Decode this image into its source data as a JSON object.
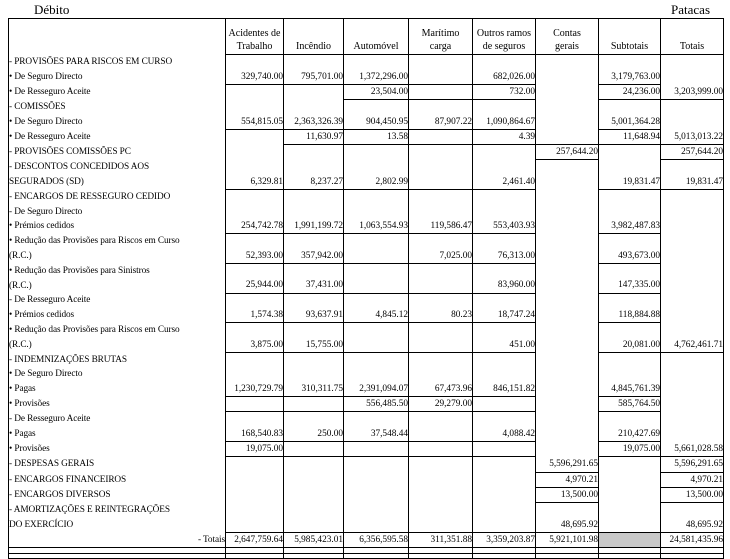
{
  "page": {
    "top_left_label": "Débito",
    "top_right_label": "Patacas"
  },
  "colors": {
    "background": "#ffffff",
    "grid": "#000000",
    "text": "#000000",
    "shaded_cell": "#c9c9c9"
  },
  "table": {
    "columns": [
      {
        "key": "label",
        "header": ""
      },
      {
        "key": "c1",
        "header": "Acidentes de\nTrabalho"
      },
      {
        "key": "c2",
        "header": "Incêndio"
      },
      {
        "key": "c3",
        "header": "Automóvel"
      },
      {
        "key": "c4",
        "header": "Marítimo\ncarga"
      },
      {
        "key": "c5",
        "header": "Outros ramos\nde seguros"
      },
      {
        "key": "c6",
        "header": "Contas\ngerais"
      },
      {
        "key": "c7",
        "header": "Subtotais"
      },
      {
        "key": "c8",
        "header": "Totais"
      }
    ],
    "rows": [
      {
        "label": "- PROVISÕES PARA RISCOS EM CURSO",
        "ind": 0
      },
      {
        "label": "• De Seguro Directo",
        "ind": 1,
        "values": {
          "c1": "329,740.00",
          "c2": "795,701.00",
          "c3": "1,372,296.00",
          "c5": "682,026.00",
          "c7": "3,179,763.00"
        },
        "rules": [
          "c1",
          "c2",
          "c3",
          "c4",
          "c5",
          "c7"
        ]
      },
      {
        "label": "• De Resseguro Aceite",
        "ind": 1,
        "values": {
          "c3": "23,504.00",
          "c5": "732.00",
          "c7": "24,236.00",
          "c8": "3,203,999.00"
        },
        "rules": [
          "c3",
          "c4",
          "c5",
          "c7",
          "c8"
        ]
      },
      {
        "label": "- COMISSÕES",
        "ind": 0
      },
      {
        "label": "• De Seguro Directo",
        "ind": 1,
        "values": {
          "c1": "554,815.05",
          "c2": "2,363,326.39",
          "c3": "904,450.95",
          "c4": "87,907.22",
          "c5": "1,090,864.67",
          "c7": "5,001,364.28"
        },
        "rules": [
          "c1",
          "c2",
          "c3",
          "c4",
          "c5",
          "c7"
        ]
      },
      {
        "label": "• De Resseguro Aceite",
        "ind": 1,
        "values": {
          "c2": "11,630.97",
          "c3": "13.58",
          "c5": "4.39",
          "c7": "11,648.94",
          "c8": "5,013,013.22"
        },
        "rules": [
          "c2",
          "c3",
          "c4",
          "c5",
          "c6",
          "c7",
          "c8"
        ]
      },
      {
        "label": "- PROVISÕES COMISSÕES PC",
        "ind": 2,
        "values": {
          "c6": "257,644.20",
          "c8": "257,644.20"
        },
        "rules": [
          "c6",
          "c8"
        ]
      },
      {
        "label": "- DESCONTOS CONCEDIDOS AOS",
        "ind": 0
      },
      {
        "label": "SEGURADOS (SD)",
        "ind": 3,
        "values": {
          "c1": "6,329.81",
          "c2": "8,237.27",
          "c3": "2,802.99",
          "c5": "2,461.40",
          "c7": "19,831.47",
          "c8": "19,831.47"
        },
        "rules": [
          "c1",
          "c2",
          "c3",
          "c4",
          "c5",
          "c7",
          "c8"
        ]
      },
      {
        "label": "- ENCARGOS DE RESSEGURO CEDIDO",
        "ind": 0
      },
      {
        "label": "- De Seguro Directo",
        "ind": 2
      },
      {
        "label": "• Prémios cedidos",
        "ind": 1,
        "values": {
          "c1": "254,742.78",
          "c2": "1,991,199.72",
          "c3": "1,063,554.93",
          "c4": "119,586.47",
          "c5": "553,403.93",
          "c7": "3,982,487.83"
        },
        "rules": [
          "c1",
          "c2",
          "c3",
          "c4",
          "c5",
          "c7"
        ]
      },
      {
        "label": "• Redução das Provisões para Riscos em Curso",
        "ind": 1
      },
      {
        "label": "(R.C.)",
        "ind": 4,
        "values": {
          "c1": "52,393.00",
          "c2": "357,942.00",
          "c4": "7,025.00",
          "c5": "76,313.00",
          "c7": "493,673.00"
        },
        "rules": [
          "c1",
          "c2",
          "c3",
          "c4",
          "c5",
          "c7"
        ]
      },
      {
        "label": "• Redução das Provisões para Sinistros",
        "ind": 1
      },
      {
        "label": "(R.C.)",
        "ind": 4,
        "values": {
          "c1": "25,944.00",
          "c2": "37,431.00",
          "c5": "83,960.00",
          "c7": "147,335.00"
        },
        "rules": [
          "c1",
          "c2",
          "c3",
          "c4",
          "c5",
          "c7"
        ]
      },
      {
        "label": "- De Resseguro Aceite",
        "ind": 2
      },
      {
        "label": "• Prémios cedidos",
        "ind": 1,
        "values": {
          "c1": "1,574.38",
          "c2": "93,637.91",
          "c3": "4,845.12",
          "c4": "80.23",
          "c5": "18,747.24",
          "c7": "118,884.88"
        },
        "rules": [
          "c1",
          "c2",
          "c3",
          "c4",
          "c5",
          "c7"
        ]
      },
      {
        "label": "• Redução das Provisões para Riscos em Curso",
        "ind": 1
      },
      {
        "label": "(R.C.)",
        "ind": 4,
        "values": {
          "c1": "3,875.00",
          "c2": "15,755.00",
          "c5": "451.00",
          "c7": "20,081.00",
          "c8": "4,762,461.71"
        },
        "rules": [
          "c1",
          "c2",
          "c3",
          "c4",
          "c5",
          "c7",
          "c8"
        ]
      },
      {
        "label": "- INDEMNIZAÇÕES BRUTAS",
        "ind": 0
      },
      {
        "label": "• De Seguro Directo",
        "ind": 1
      },
      {
        "label": "• Pagas",
        "ind": 1,
        "values": {
          "c1": "1,230,729.79",
          "c2": "310,311.75",
          "c3": "2,391,094.07",
          "c4": "67,473.96",
          "c5": "846,151.82",
          "c7": "4,845,761.39"
        },
        "rules": [
          "c1",
          "c2",
          "c3",
          "c4",
          "c5",
          "c7"
        ]
      },
      {
        "label": "• Provisões",
        "ind": 1,
        "values": {
          "c3": "556,485.50",
          "c4": "29,279.00",
          "c7": "585,764.50"
        },
        "rules": [
          "c1",
          "c2",
          "c3",
          "c4",
          "c5",
          "c7"
        ]
      },
      {
        "label": "- De Resseguro Aceite",
        "ind": 2
      },
      {
        "label": "• Pagas",
        "ind": 1,
        "values": {
          "c1": "168,540.83",
          "c2": "250.00",
          "c3": "37,548.44",
          "c5": "4,088.42",
          "c7": "210,427.69"
        },
        "rules": [
          "c1",
          "c2",
          "c3",
          "c4",
          "c5",
          "c7"
        ]
      },
      {
        "label": "• Provisões",
        "ind": 1,
        "values": {
          "c1": "19,075.00",
          "c7": "19,075.00",
          "c8": "5,661,028.58"
        },
        "rules": [
          "c1",
          "c2",
          "c3",
          "c4",
          "c5",
          "c7",
          "c8"
        ]
      },
      {
        "label": "- DESPESAS GERAIS",
        "ind": 0,
        "values": {
          "c6": "5,596,291.65",
          "c8": "5,596,291.65"
        },
        "rules": [
          "c6",
          "c8"
        ]
      },
      {
        "label": "- ENCARGOS FINANCEIROS",
        "ind": 0,
        "values": {
          "c6": "4,970.21",
          "c8": "4,970.21"
        },
        "rules": [
          "c6",
          "c8"
        ]
      },
      {
        "label": "- ENCARGOS DIVERSOS",
        "ind": 0,
        "values": {
          "c6": "13,500.00",
          "c8": "13,500.00"
        },
        "rules": [
          "c6",
          "c8"
        ]
      },
      {
        "label": "- AMORTIZAÇÕES E REINTEGRAÇÕES",
        "ind": 0
      },
      {
        "label": "DO EXERCÍCIO",
        "ind": 3,
        "values": {
          "c6": "48,695.92",
          "c8": "48,695.92"
        },
        "rules": [
          "c6",
          "c8"
        ]
      },
      {
        "label": "- Totais",
        "ind": 0,
        "align": "right",
        "top_rule": true,
        "values": {
          "c1": "2,647,759.64",
          "c2": "5,985,423.01",
          "c3": "6,356,595.58",
          "c4": "311,351.88",
          "c5": "3,359,203.87",
          "c6": "5,921,101.98",
          "c8": "24,581,435.96"
        },
        "rules": [
          "label",
          "c1",
          "c2",
          "c3",
          "c4",
          "c5",
          "c6",
          "c7",
          "c8"
        ],
        "gray": [
          "c7"
        ]
      }
    ]
  }
}
